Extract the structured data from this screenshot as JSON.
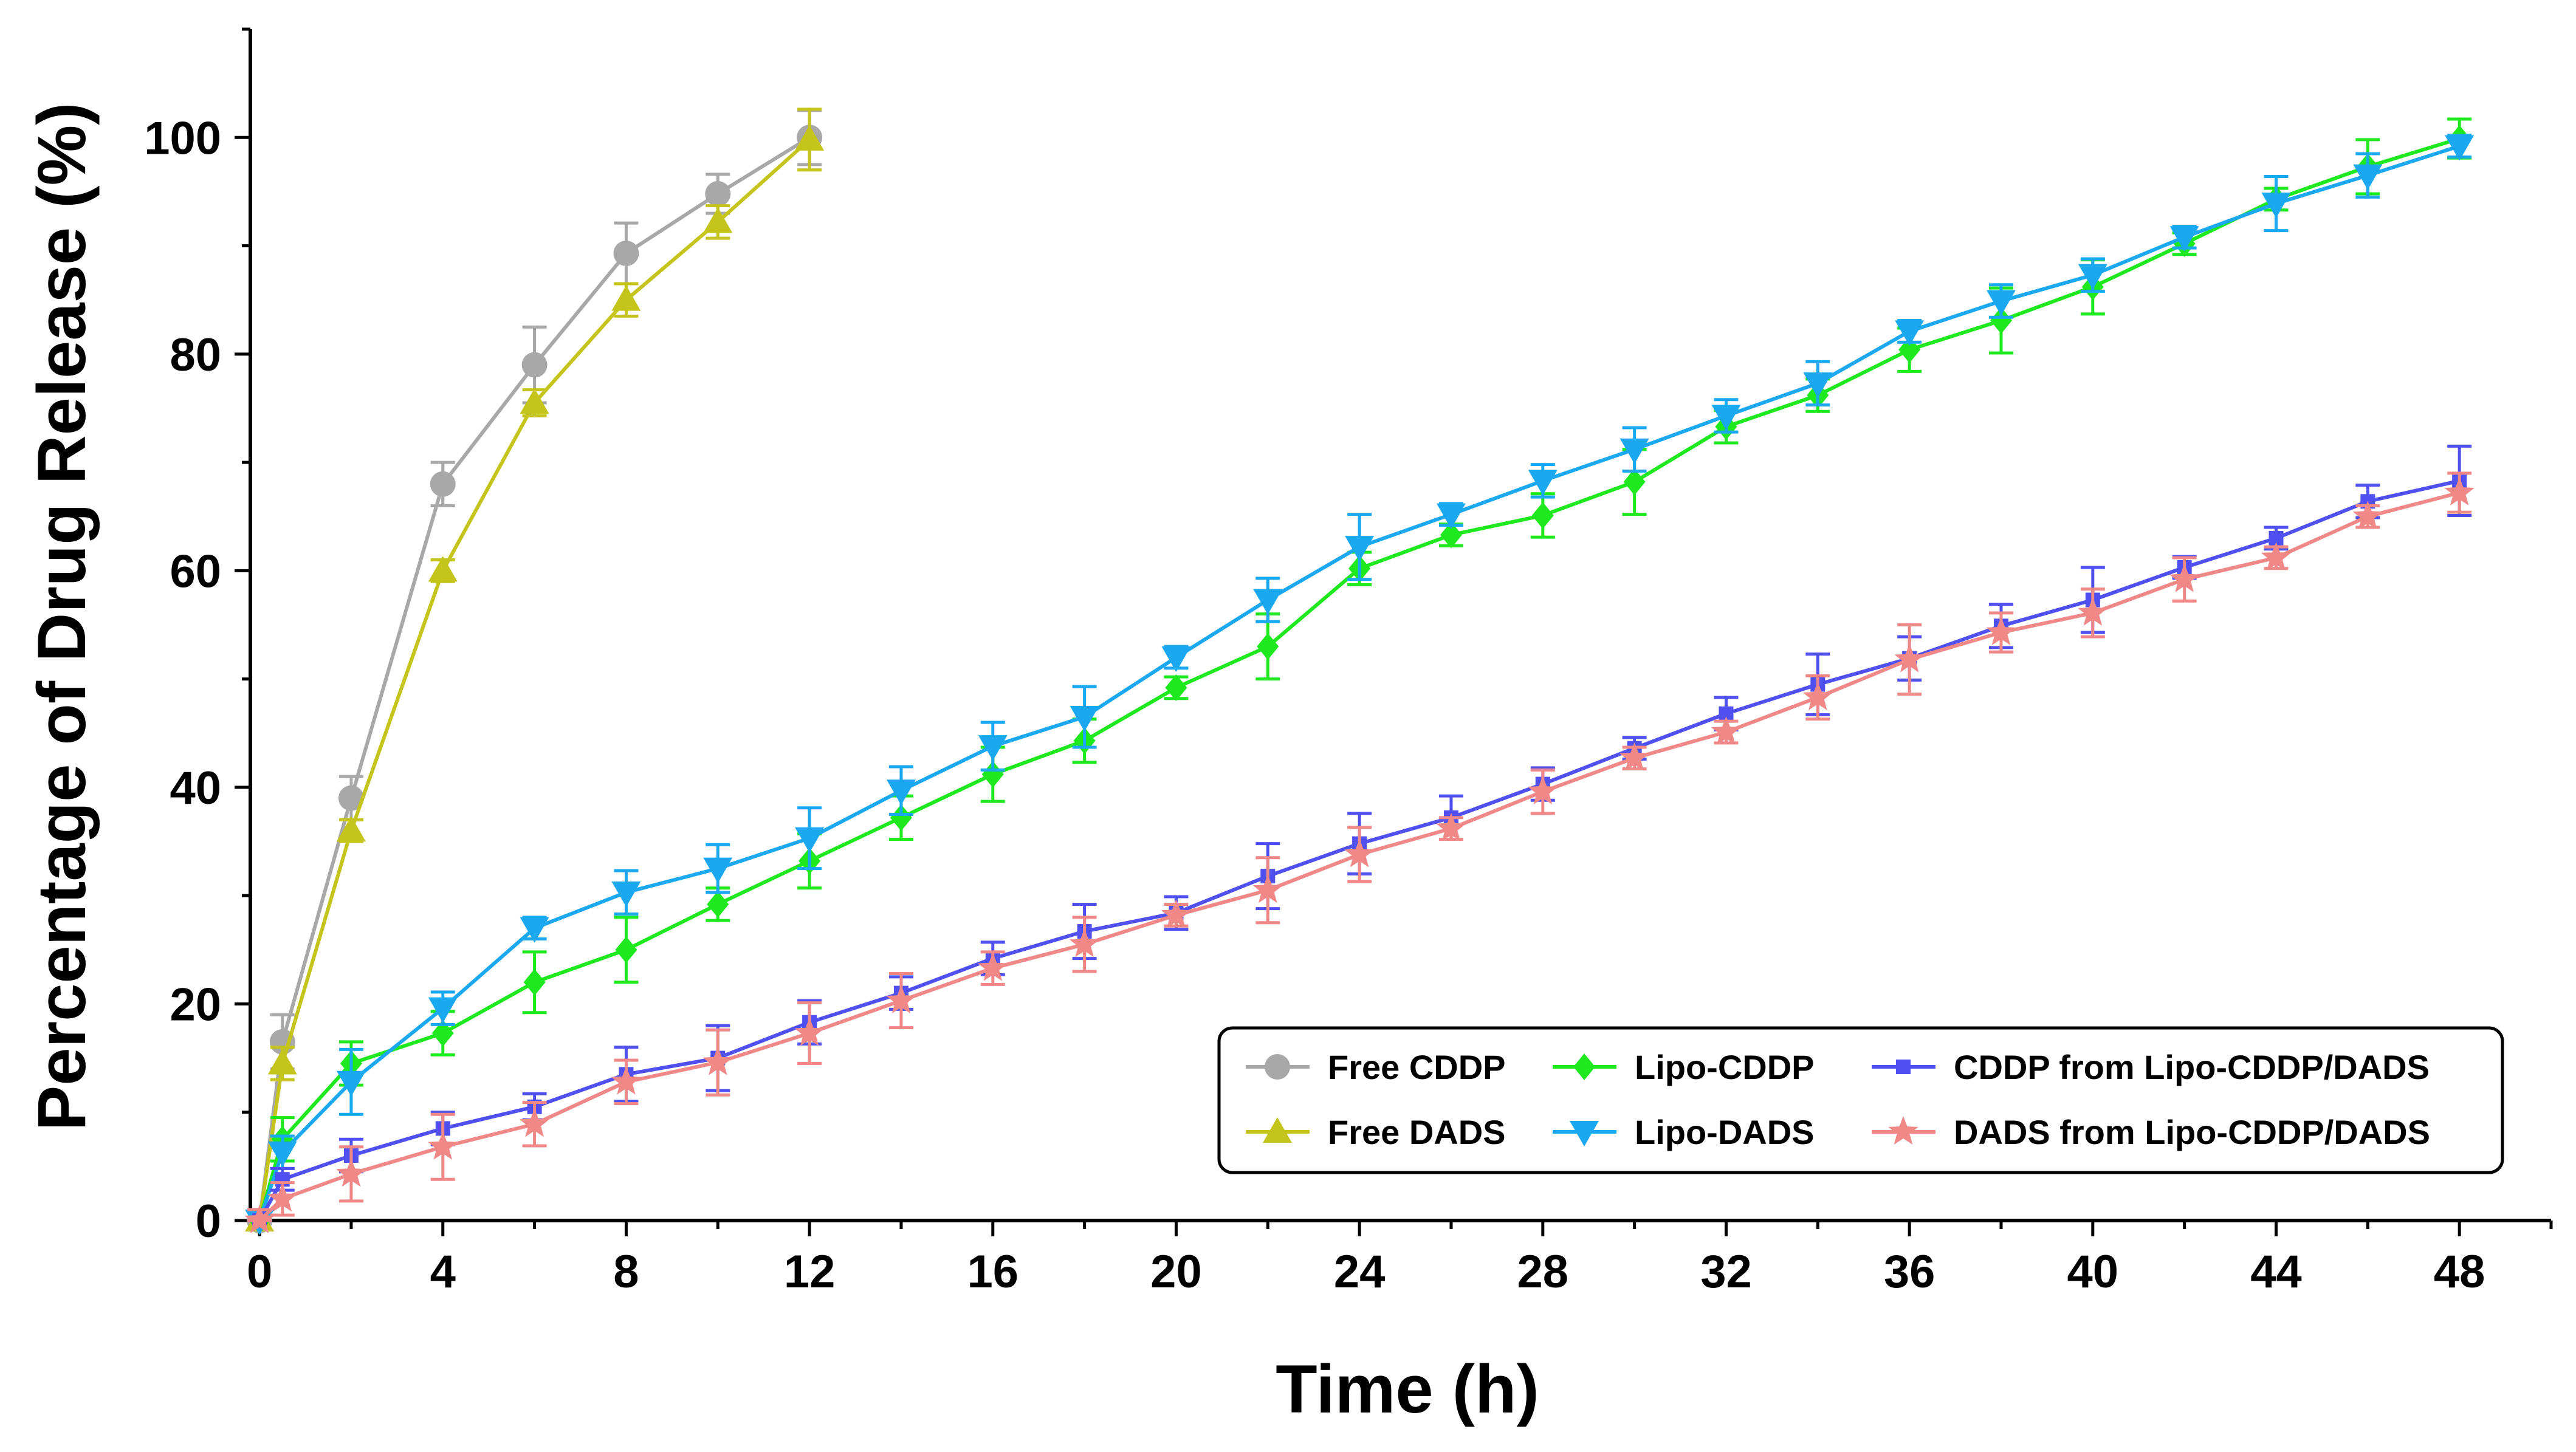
{
  "chart_data": {
    "type": "line",
    "title": "",
    "xlabel": "Time (h)",
    "ylabel": "Percentage of Drug Release (%)",
    "xlim": [
      -0.2,
      50
    ],
    "ylim": [
      0,
      110
    ],
    "xticks": [
      0,
      4,
      8,
      12,
      16,
      20,
      24,
      28,
      32,
      36,
      40,
      44,
      48
    ],
    "xtick_labels": [
      "0",
      "4",
      "8",
      "12",
      "16",
      "20",
      "24",
      "28",
      "32",
      "36",
      "40",
      "44",
      "48"
    ],
    "yticks": [
      0,
      20,
      40,
      60,
      80,
      100
    ],
    "ytick_labels": [
      "0",
      "20",
      "40",
      "60",
      "80",
      "100"
    ],
    "grid": false,
    "legend_position": "bottom-right",
    "series": [
      {
        "name": "Free CDDP",
        "color": "#a8a8a8",
        "marker": "circle",
        "x": [
          0,
          0.5,
          2,
          4,
          6,
          8,
          10,
          12
        ],
        "y": [
          0,
          16.5,
          39,
          68,
          79,
          89.3,
          94.8,
          100
        ],
        "err": [
          1,
          2.5,
          2,
          2,
          3.5,
          2.8,
          1.8,
          2.5
        ]
      },
      {
        "name": "Free DADS",
        "color": "#c4c41a",
        "marker": "triangle-up",
        "x": [
          0,
          0.5,
          2,
          4,
          6,
          8,
          10,
          12
        ],
        "y": [
          0,
          14.5,
          36,
          60,
          75.5,
          85,
          92.2,
          99.8
        ],
        "err": [
          1,
          1.5,
          1,
          1,
          1.2,
          1.5,
          1.5,
          2.8
        ]
      },
      {
        "name": "Lipo-CDDP",
        "color": "#1ee81e",
        "marker": "diamond",
        "x": [
          0,
          0.5,
          2,
          4,
          6,
          8,
          10,
          12,
          14,
          16,
          18,
          20,
          22,
          24,
          26,
          28,
          30,
          32,
          34,
          36,
          38,
          40,
          42,
          44,
          46,
          48
        ],
        "y": [
          0,
          7.5,
          14.5,
          17.3,
          22,
          25,
          29.2,
          33.2,
          37.2,
          41.2,
          44.3,
          49.2,
          53,
          60.2,
          63.3,
          65.1,
          68.2,
          73.3,
          76.2,
          80.4,
          83.1,
          86.2,
          90.2,
          94.3,
          97.3,
          99.9
        ],
        "err": [
          1,
          2,
          2,
          2,
          2.8,
          3,
          1.5,
          2.5,
          2,
          2.5,
          2,
          1,
          3,
          1.5,
          1,
          2,
          3,
          1.5,
          1.5,
          2,
          3,
          2.5,
          1,
          1,
          2.5,
          1.8
        ]
      },
      {
        "name": "Lipo-DADS",
        "color": "#1aa8f0",
        "marker": "triangle-down",
        "x": [
          0,
          0.5,
          2,
          4,
          6,
          8,
          10,
          12,
          14,
          16,
          18,
          20,
          22,
          24,
          26,
          28,
          30,
          32,
          34,
          36,
          38,
          40,
          42,
          44,
          46,
          48
        ],
        "y": [
          0,
          6.3,
          12.8,
          19.6,
          27,
          30.3,
          32.5,
          35.3,
          39.7,
          43.8,
          46.5,
          52,
          57.3,
          62.2,
          65.2,
          68.3,
          71.2,
          74.3,
          77.3,
          82.1,
          84.9,
          87.3,
          90.8,
          93.9,
          96.5,
          99.2
        ],
        "err": [
          1,
          1.5,
          3,
          1.5,
          1,
          2,
          2.2,
          2.8,
          2.2,
          2.2,
          2.8,
          1,
          2,
          3,
          1,
          1.5,
          2,
          1.5,
          2,
          1,
          1.5,
          1.5,
          1,
          2.5,
          2,
          1
        ]
      },
      {
        "name": "CDDP from Lipo-CDDP/DADS",
        "color": "#5050f0",
        "marker": "square",
        "x": [
          0,
          0.5,
          2,
          4,
          6,
          8,
          10,
          12,
          14,
          16,
          18,
          20,
          22,
          24,
          26,
          28,
          30,
          32,
          34,
          36,
          38,
          40,
          42,
          44,
          46,
          48
        ],
        "y": [
          0,
          3.8,
          6,
          8.5,
          10.5,
          13.5,
          15,
          18.3,
          21,
          24.2,
          26.7,
          28.4,
          31.8,
          34.8,
          37.2,
          40.3,
          43.6,
          46.8,
          49.5,
          51.9,
          54.9,
          57.3,
          60.3,
          63,
          66.4,
          68.3
        ],
        "err": [
          1,
          1,
          1.5,
          1.5,
          1.2,
          2.5,
          3,
          2,
          1.5,
          1.5,
          2.5,
          1.5,
          3,
          2.8,
          2,
          1.5,
          1,
          1.5,
          2.8,
          2,
          2,
          3,
          1,
          1,
          1.5,
          3.2
        ]
      },
      {
        "name": "DADS from Lipo-CDDP/DADS",
        "color": "#f08888",
        "marker": "star",
        "x": [
          0,
          0.5,
          2,
          4,
          6,
          8,
          10,
          12,
          14,
          16,
          18,
          20,
          22,
          24,
          26,
          28,
          30,
          32,
          34,
          36,
          38,
          40,
          42,
          44,
          46,
          48
        ],
        "y": [
          0,
          2,
          4.3,
          6.8,
          8.9,
          12.8,
          14.6,
          17.3,
          20.3,
          23.3,
          25.5,
          28.2,
          30.5,
          33.8,
          36.2,
          39.6,
          42.7,
          45.1,
          48.3,
          51.8,
          54.3,
          56.1,
          59.2,
          61.2,
          65,
          67.2
        ],
        "err": [
          1,
          1.5,
          2.5,
          3,
          2,
          2,
          3,
          2.8,
          2.5,
          1.5,
          2.5,
          1,
          3,
          2.5,
          1,
          2,
          1,
          1,
          2,
          3.2,
          1.8,
          2.2,
          2,
          1,
          1,
          1.8
        ]
      }
    ]
  }
}
